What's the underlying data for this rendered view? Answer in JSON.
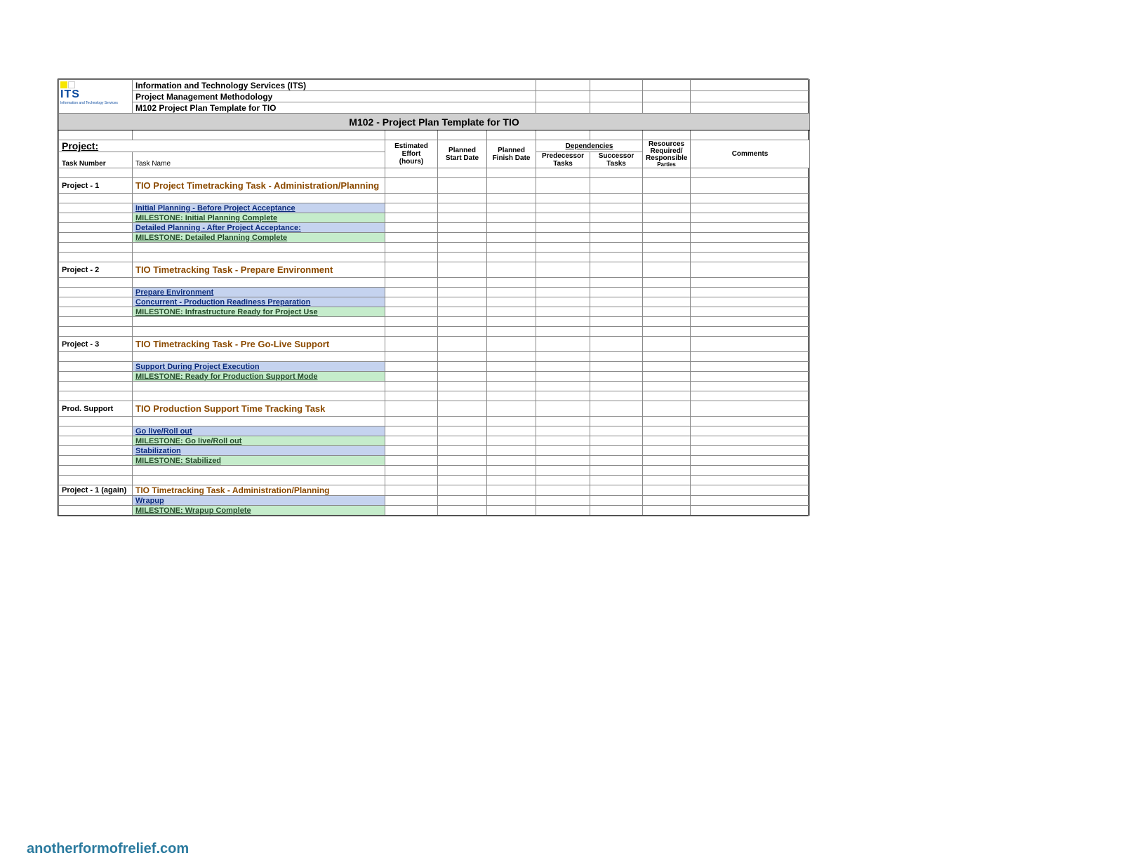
{
  "logo": {
    "text": "ITS",
    "subtext": "Information and Technology Services",
    "sq_colors": [
      "#f7e600",
      "#ffffff"
    ]
  },
  "header": {
    "line1": "Information and Technology Services (ITS)",
    "line2": "Project Management Methodology",
    "line3": "M102 Project Plan Template for TIO"
  },
  "banner": "M102 - Project Plan Template for TIO",
  "columns": {
    "project_label": "Project:",
    "task_number": "Task Number",
    "task_name": "Task Name",
    "effort_l1": "Estimated",
    "effort_l2": "Effort",
    "effort_l3": "(hours)",
    "planned_start_l1": "Planned",
    "planned_start_l2": "Start Date",
    "planned_finish_l1": "Planned",
    "planned_finish_l2": "Finish Date",
    "dependencies": "Dependencies",
    "predecessor_l1": "Predecessor",
    "predecessor_l2": "Tasks",
    "successor_l1": "Successor",
    "successor_l2": "Tasks",
    "resources_l1": "Resources",
    "resources_l2": "Required/",
    "resources_l3": "Responsible",
    "resources_l4": "Parties",
    "comments": "Comments"
  },
  "sections": [
    {
      "id": "Project - 1",
      "title": "TIO Project Timetracking Task - Administration/Planning",
      "rows": [
        {
          "type": "blue",
          "text": "Initial Planning - Before Project Acceptance"
        },
        {
          "type": "green",
          "text": "MILESTONE: Initial Planning Complete"
        },
        {
          "type": "blue",
          "text": "Detailed Planning - After Project Acceptance:"
        },
        {
          "type": "green",
          "text": "MILESTONE: Detailed Planning Complete"
        }
      ]
    },
    {
      "id": "Project - 2",
      "title": "TIO Timetracking Task - Prepare Environment",
      "rows": [
        {
          "type": "blue",
          "text": "Prepare Environment"
        },
        {
          "type": "blue",
          "text": "Concurrent - Production Readiness Preparation"
        },
        {
          "type": "green",
          "text": "MILESTONE: Infrastructure Ready for Project Use"
        }
      ]
    },
    {
      "id": "Project - 3",
      "title": "TIO Timetracking Task - Pre Go-Live Support",
      "rows": [
        {
          "type": "blue",
          "text": "Support During Project Execution"
        },
        {
          "type": "green",
          "text": "MILESTONE: Ready for Production Support Mode"
        }
      ]
    },
    {
      "id": "Prod. Support",
      "title": "TIO Production Support Time Tracking Task",
      "rows": [
        {
          "type": "blue",
          "text": "Go live/Roll out"
        },
        {
          "type": "green",
          "text": "MILESTONE: Go live/Roll out"
        },
        {
          "type": "blue",
          "text": "Stabilization"
        },
        {
          "type": "green",
          "text": "MILESTONE: Stabilized"
        }
      ]
    },
    {
      "id": "Project - 1 (again)",
      "title": "TIO Timetracking Task - Administration/Planning",
      "title_style": "plain",
      "rows": [
        {
          "type": "blue",
          "text": "Wrapup"
        },
        {
          "type": "green",
          "text": "MILESTONE: Wrapup Complete"
        }
      ]
    }
  ],
  "colors": {
    "banner_bg": "#d0d0d0",
    "blue_bg": "#c5d3ef",
    "green_bg": "#c5eccb",
    "section_text": "#8b4a00",
    "link_text": "#0b2a7a",
    "milestone_text": "#244a2a",
    "border": "#888888"
  },
  "watermark": "anotherformofrelief.com"
}
